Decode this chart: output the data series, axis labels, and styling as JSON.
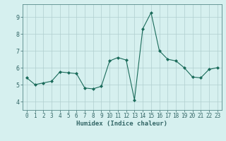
{
  "x": [
    0,
    1,
    2,
    3,
    4,
    5,
    6,
    7,
    8,
    9,
    10,
    11,
    12,
    13,
    14,
    15,
    16,
    17,
    18,
    19,
    20,
    21,
    22,
    23
  ],
  "y": [
    5.4,
    5.0,
    5.1,
    5.2,
    5.75,
    5.7,
    5.65,
    4.8,
    4.75,
    4.9,
    6.4,
    6.6,
    6.45,
    4.1,
    8.3,
    9.25,
    7.0,
    6.5,
    6.4,
    6.0,
    5.45,
    5.4,
    5.9,
    6.0
  ],
  "line_color": "#1a6b5a",
  "marker": "D",
  "marker_size": 2.0,
  "bg_color": "#d6f0ef",
  "grid_color": "#b0cece",
  "xlabel": "Humidex (Indice chaleur)",
  "ylim": [
    3.5,
    9.75
  ],
  "yticks": [
    4,
    5,
    6,
    7,
    8,
    9
  ],
  "xticks": [
    0,
    1,
    2,
    3,
    4,
    5,
    6,
    7,
    8,
    9,
    10,
    11,
    12,
    13,
    14,
    15,
    16,
    17,
    18,
    19,
    20,
    21,
    22,
    23
  ],
  "tick_fontsize": 5.5,
  "xlabel_fontsize": 6.5,
  "axis_color": "#336666",
  "spine_color": "#558888"
}
